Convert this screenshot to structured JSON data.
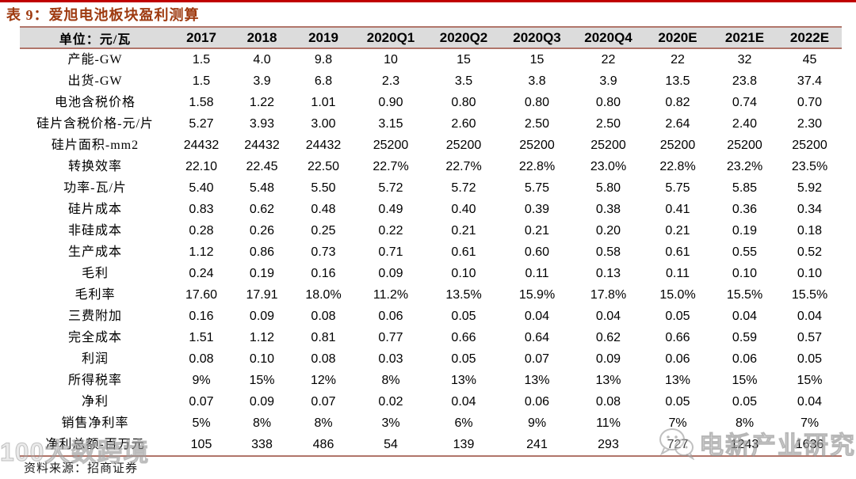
{
  "title": "表 9：爱旭电池板块盈利测算",
  "table": {
    "columns": [
      "单位：元/瓦",
      "2017",
      "2018",
      "2019",
      "2020Q1",
      "2020Q2",
      "2020Q3",
      "2020Q4",
      "2020E",
      "2021E",
      "2022E"
    ],
    "rows": [
      {
        "label": "产能-GW",
        "values": [
          "1.5",
          "4.0",
          "9.8",
          "10",
          "15",
          "15",
          "22",
          "22",
          "32",
          "45"
        ]
      },
      {
        "label": "出货-GW",
        "values": [
          "1.5",
          "3.9",
          "6.8",
          "2.3",
          "3.5",
          "3.8",
          "3.9",
          "13.5",
          "23.8",
          "37.4"
        ]
      },
      {
        "label": "电池含税价格",
        "values": [
          "1.58",
          "1.22",
          "1.01",
          "0.90",
          "0.80",
          "0.80",
          "0.80",
          "0.82",
          "0.74",
          "0.70"
        ]
      },
      {
        "label": "硅片含税价格-元/片",
        "values": [
          "5.27",
          "3.93",
          "3.00",
          "3.15",
          "2.60",
          "2.50",
          "2.50",
          "2.64",
          "2.40",
          "2.30"
        ]
      },
      {
        "label": "硅片面积-mm2",
        "values": [
          "24432",
          "24432",
          "24432",
          "25200",
          "25200",
          "25200",
          "25200",
          "25200",
          "25200",
          "25200"
        ]
      },
      {
        "label": "转换效率",
        "values": [
          "22.10",
          "22.45",
          "22.50",
          "22.7%",
          "22.7%",
          "22.8%",
          "23.0%",
          "22.8%",
          "23.2%",
          "23.5%"
        ]
      },
      {
        "label": "功率-瓦/片",
        "values": [
          "5.40",
          "5.48",
          "5.50",
          "5.72",
          "5.72",
          "5.75",
          "5.80",
          "5.75",
          "5.85",
          "5.92"
        ]
      },
      {
        "label": "硅片成本",
        "values": [
          "0.83",
          "0.62",
          "0.48",
          "0.49",
          "0.40",
          "0.39",
          "0.38",
          "0.41",
          "0.36",
          "0.34"
        ]
      },
      {
        "label": "非硅成本",
        "values": [
          "0.28",
          "0.26",
          "0.25",
          "0.22",
          "0.21",
          "0.21",
          "0.20",
          "0.21",
          "0.19",
          "0.18"
        ]
      },
      {
        "label": "生产成本",
        "values": [
          "1.12",
          "0.86",
          "0.73",
          "0.71",
          "0.61",
          "0.60",
          "0.58",
          "0.61",
          "0.55",
          "0.52"
        ]
      },
      {
        "label": "毛利",
        "values": [
          "0.24",
          "0.19",
          "0.16",
          "0.09",
          "0.10",
          "0.11",
          "0.13",
          "0.11",
          "0.10",
          "0.10"
        ]
      },
      {
        "label": "毛利率",
        "values": [
          "17.60",
          "17.91",
          "18.0%",
          "11.2%",
          "13.5%",
          "15.9%",
          "17.8%",
          "15.0%",
          "15.5%",
          "15.5%"
        ]
      },
      {
        "label": "三费附加",
        "values": [
          "0.16",
          "0.09",
          "0.08",
          "0.06",
          "0.05",
          "0.04",
          "0.04",
          "0.05",
          "0.04",
          "0.04"
        ]
      },
      {
        "label": "完全成本",
        "values": [
          "1.51",
          "1.12",
          "0.81",
          "0.77",
          "0.66",
          "0.64",
          "0.62",
          "0.66",
          "0.59",
          "0.57"
        ]
      },
      {
        "label": "利润",
        "values": [
          "0.08",
          "0.10",
          "0.08",
          "0.03",
          "0.05",
          "0.07",
          "0.09",
          "0.06",
          "0.06",
          "0.05"
        ]
      },
      {
        "label": "所得税率",
        "values": [
          "9%",
          "15%",
          "12%",
          "8%",
          "13%",
          "13%",
          "13%",
          "13%",
          "15%",
          "15%"
        ]
      },
      {
        "label": "净利",
        "values": [
          "0.07",
          "0.09",
          "0.07",
          "0.02",
          "0.04",
          "0.06",
          "0.08",
          "0.05",
          "0.05",
          "0.04"
        ]
      },
      {
        "label": "销售净利率",
        "values": [
          "5%",
          "8%",
          "8%",
          "3%",
          "6%",
          "9%",
          "11%",
          "7%",
          "8%",
          "7%"
        ]
      },
      {
        "label": "净利总额-百万元",
        "values": [
          "105",
          "338",
          "486",
          "54",
          "139",
          "241",
          "293",
          "727",
          "1243",
          "1636"
        ]
      }
    ]
  },
  "source": "资料来源：招商证券",
  "watermarks": {
    "left": "100大数跨境",
    "right": "电新产业研究",
    "right_icon": "wechat-icon"
  },
  "colors": {
    "top_rule_red": "#c00000",
    "title_brown": "#9e3a10",
    "table_rule_rose": "#b0756a",
    "header_bg_gray": "#dcdcdc",
    "watermark_gray": "#b9b9b9"
  }
}
